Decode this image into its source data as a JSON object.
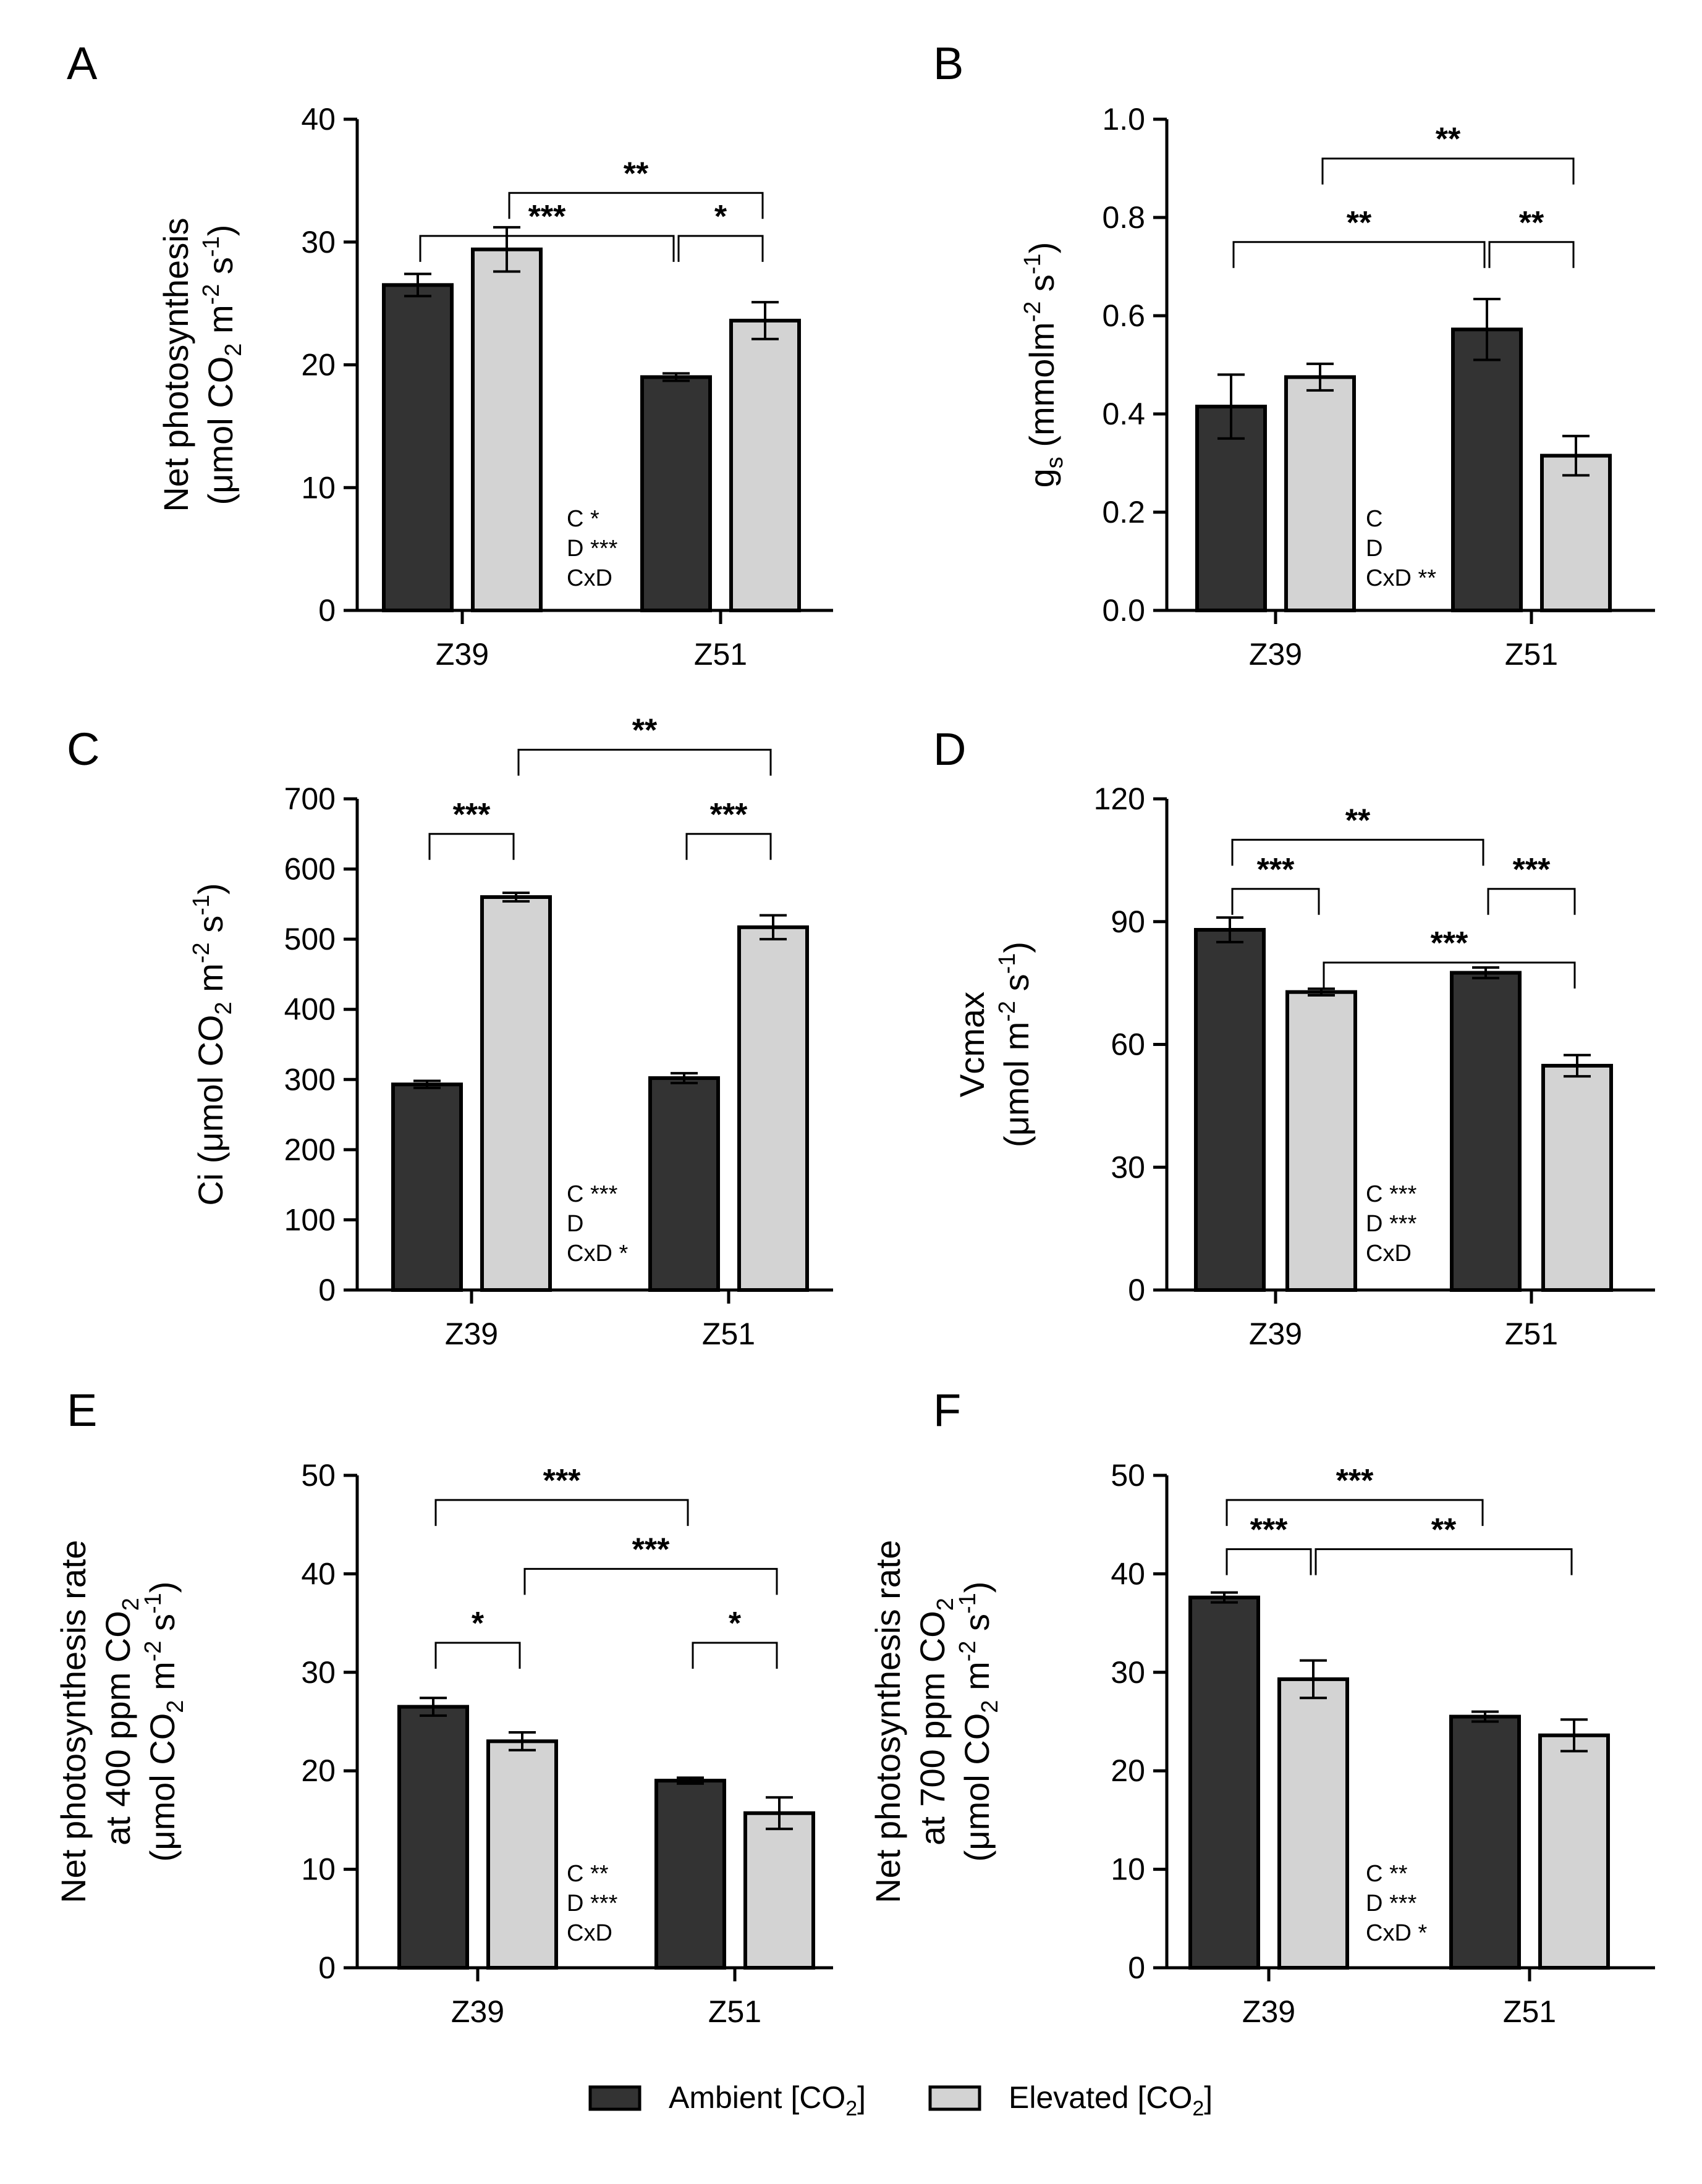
{
  "colors": {
    "ambient": "#333333",
    "elevated": "#d3d3d3",
    "stroke": "#000000"
  },
  "legend": {
    "ambient": {
      "label": "Ambient [CO",
      "sub": "2",
      "end": "]"
    },
    "elevated": {
      "label": "Elevated [CO",
      "sub": "2",
      "end": "]"
    }
  },
  "chart_data": [
    {
      "panel": "A",
      "type": "bar",
      "ylabel_lines": [
        [
          {
            "t": "Net photosynthesis"
          }
        ],
        [
          {
            "t": "(μmol CO"
          },
          {
            "t": "2",
            "s": "sub"
          },
          {
            "t": " m"
          },
          {
            "t": "-2",
            "s": "sup"
          },
          {
            "t": " s"
          },
          {
            "t": "-1",
            "s": "sup"
          },
          {
            "t": ")"
          }
        ]
      ],
      "categories": [
        "Z39",
        "Z51"
      ],
      "series": [
        {
          "name": "Ambient [CO2]",
          "values": [
            26.5,
            19.0
          ],
          "errors": [
            0.9,
            0.3
          ]
        },
        {
          "name": "Elevated [CO2]",
          "values": [
            29.4,
            23.6
          ],
          "errors": [
            1.8,
            1.5
          ]
        }
      ],
      "ylim": [
        0,
        40
      ],
      "yticks": [
        "0",
        "10",
        "20",
        "30",
        "40"
      ],
      "brackets": [
        {
          "from": [
            0,
            1
          ],
          "to": [
            1,
            1
          ],
          "y": 34,
          "label": "**"
        },
        {
          "from": [
            0,
            0
          ],
          "to": [
            1,
            0
          ],
          "y": 30.5,
          "label": "***"
        },
        {
          "from": [
            1,
            0
          ],
          "to": [
            1,
            1
          ],
          "y": 30.5,
          "label": "*"
        }
      ],
      "stats": [
        "C *",
        "D ***",
        "CxD"
      ]
    },
    {
      "panel": "B",
      "type": "bar",
      "ylabel_lines": [
        [
          {
            "t": "g"
          },
          {
            "t": "s",
            "s": "sub"
          },
          {
            "t": " (mmolm"
          },
          {
            "t": "-2",
            "s": "sup"
          },
          {
            "t": " s"
          },
          {
            "t": "-1",
            "s": "sup"
          },
          {
            "t": ")"
          }
        ]
      ],
      "categories": [
        "Z39",
        "Z51"
      ],
      "series": [
        {
          "name": "Ambient [CO2]",
          "values": [
            0.415,
            0.572
          ],
          "errors": [
            0.065,
            0.062
          ]
        },
        {
          "name": "Elevated [CO2]",
          "values": [
            0.475,
            0.315
          ],
          "errors": [
            0.027,
            0.04
          ]
        }
      ],
      "ylim": [
        0,
        1.0
      ],
      "yticks": [
        "0.0",
        "0.2",
        "0.4",
        "0.6",
        "0.8",
        "1.0"
      ],
      "brackets": [
        {
          "from": [
            0,
            1
          ],
          "to": [
            1,
            1
          ],
          "y": 0.92,
          "label": "**"
        },
        {
          "from": [
            0,
            0
          ],
          "to": [
            1,
            0
          ],
          "y": 0.75,
          "label": "**"
        },
        {
          "from": [
            1,
            0
          ],
          "to": [
            1,
            1
          ],
          "y": 0.75,
          "label": "**"
        }
      ],
      "stats": [
        "C",
        "D",
        "CxD **"
      ]
    },
    {
      "panel": "C",
      "type": "bar",
      "ylabel_lines": [
        [
          {
            "t": "Ci (μmol CO"
          },
          {
            "t": "2",
            "s": "sub"
          },
          {
            "t": " m"
          },
          {
            "t": "-2",
            "s": "sup"
          },
          {
            "t": " s"
          },
          {
            "t": "-1",
            "s": "sup"
          },
          {
            "t": ")"
          }
        ]
      ],
      "categories": [
        "Z39",
        "Z51"
      ],
      "series": [
        {
          "name": "Ambient [CO2]",
          "values": [
            293,
            302
          ],
          "errors": [
            5,
            7
          ]
        },
        {
          "name": "Elevated [CO2]",
          "values": [
            560,
            517
          ],
          "errors": [
            6,
            17
          ]
        }
      ],
      "ylim": [
        0,
        700
      ],
      "yticks": [
        "0",
        "100",
        "200",
        "300",
        "400",
        "500",
        "600",
        "700"
      ],
      "brackets": [
        {
          "from": [
            0,
            1
          ],
          "to": [
            1,
            1
          ],
          "y": 770,
          "label": "**"
        },
        {
          "from": [
            0,
            0
          ],
          "to": [
            0,
            1
          ],
          "y": 650,
          "label": "***"
        },
        {
          "from": [
            1,
            0
          ],
          "to": [
            1,
            1
          ],
          "y": 650,
          "label": "***"
        }
      ],
      "stats": [
        "C ***",
        "D",
        "CxD *"
      ]
    },
    {
      "panel": "D",
      "type": "bar",
      "ylabel_lines": [
        [
          {
            "t": "Vcmax"
          }
        ],
        [
          {
            "t": "(μmol m"
          },
          {
            "t": "-2",
            "s": "sup"
          },
          {
            "t": " s"
          },
          {
            "t": "-1",
            "s": "sup"
          },
          {
            "t": ")"
          }
        ]
      ],
      "categories": [
        "Z39",
        "Z51"
      ],
      "series": [
        {
          "name": "Ambient [CO2]",
          "values": [
            88,
            77.5
          ],
          "errors": [
            3,
            1.3
          ]
        },
        {
          "name": "Elevated [CO2]",
          "values": [
            72.8,
            54.8
          ],
          "errors": [
            0.8,
            2.6
          ]
        }
      ],
      "ylim": [
        0,
        120
      ],
      "yticks": [
        "0",
        "30",
        "60",
        "90",
        "120"
      ],
      "brackets": [
        {
          "from": [
            0,
            0
          ],
          "to": [
            1,
            0
          ],
          "y": 110,
          "label": "**"
        },
        {
          "from": [
            0,
            0
          ],
          "to": [
            0,
            1
          ],
          "y": 98,
          "label": "***"
        },
        {
          "from": [
            1,
            0
          ],
          "to": [
            1,
            1
          ],
          "y": 98,
          "label": "***"
        },
        {
          "from": [
            0,
            1
          ],
          "to": [
            1,
            1
          ],
          "y": 80,
          "label": "***"
        }
      ],
      "stats": [
        "C ***",
        "D ***",
        "CxD"
      ]
    },
    {
      "panel": "E",
      "type": "bar",
      "ylabel_lines": [
        [
          {
            "t": "Net photosynthesis rate"
          }
        ],
        [
          {
            "t": "at 400 ppm CO"
          },
          {
            "t": "2",
            "s": "sub"
          }
        ],
        [
          {
            "t": "(μmol CO"
          },
          {
            "t": "2",
            "s": "sub"
          },
          {
            "t": " m"
          },
          {
            "t": "-2",
            "s": "sup"
          },
          {
            "t": " s"
          },
          {
            "t": "-1",
            "s": "sup"
          },
          {
            "t": ")"
          }
        ]
      ],
      "categories": [
        "Z39",
        "Z51"
      ],
      "series": [
        {
          "name": "Ambient [CO2]",
          "values": [
            26.5,
            19.0
          ],
          "errors": [
            0.9,
            0.3
          ]
        },
        {
          "name": "Elevated [CO2]",
          "values": [
            23.0,
            15.7
          ],
          "errors": [
            0.9,
            1.6
          ]
        }
      ],
      "ylim": [
        0,
        50
      ],
      "yticks": [
        "0",
        "10",
        "20",
        "30",
        "40",
        "50"
      ],
      "brackets": [
        {
          "from": [
            0,
            0
          ],
          "to": [
            1,
            0
          ],
          "y": 47.5,
          "label": "***"
        },
        {
          "from": [
            0,
            1
          ],
          "to": [
            1,
            1
          ],
          "y": 40.5,
          "label": "***"
        },
        {
          "from": [
            0,
            0
          ],
          "to": [
            0,
            1
          ],
          "y": 33,
          "label": "*"
        },
        {
          "from": [
            1,
            0
          ],
          "to": [
            1,
            1
          ],
          "y": 33,
          "label": "*"
        }
      ],
      "stats": [
        "C **",
        "D ***",
        "CxD"
      ]
    },
    {
      "panel": "F",
      "type": "bar",
      "ylabel_lines": [
        [
          {
            "t": "Net photosynthesis rate"
          }
        ],
        [
          {
            "t": "at 700 ppm CO"
          },
          {
            "t": "2",
            "s": "sub"
          }
        ],
        [
          {
            "t": "(μmol CO"
          },
          {
            "t": "2",
            "s": "sub"
          },
          {
            "t": " m"
          },
          {
            "t": "-2",
            "s": "sup"
          },
          {
            "t": " s"
          },
          {
            "t": "-1",
            "s": "sup"
          },
          {
            "t": ")"
          }
        ]
      ],
      "categories": [
        "Z39",
        "Z51"
      ],
      "series": [
        {
          "name": "Ambient [CO2]",
          "values": [
            37.6,
            25.5
          ],
          "errors": [
            0.5,
            0.5
          ]
        },
        {
          "name": "Elevated [CO2]",
          "values": [
            29.3,
            23.6
          ],
          "errors": [
            1.9,
            1.6
          ]
        }
      ],
      "ylim": [
        0,
        50
      ],
      "yticks": [
        "0",
        "10",
        "20",
        "30",
        "40",
        "50"
      ],
      "brackets": [
        {
          "from": [
            0,
            0
          ],
          "to": [
            1,
            0
          ],
          "y": 47.5,
          "label": "***"
        },
        {
          "from": [
            0,
            0
          ],
          "to": [
            0,
            1
          ],
          "y": 42.5,
          "label": "***"
        },
        {
          "from": [
            0,
            1
          ],
          "to": [
            1,
            1
          ],
          "y": 42.5,
          "label": "**"
        }
      ],
      "stats": [
        "C **",
        "D ***",
        "CxD *"
      ]
    }
  ]
}
